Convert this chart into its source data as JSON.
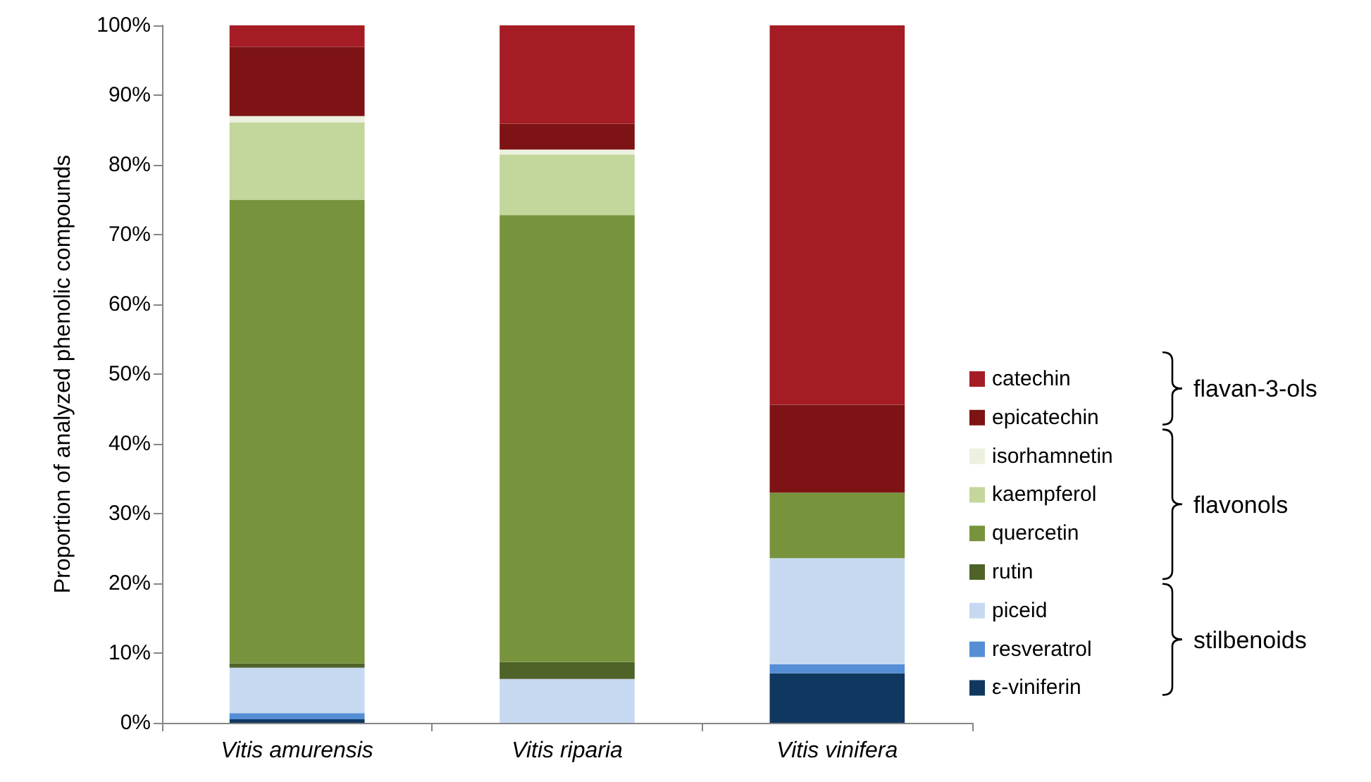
{
  "chart_data": {
    "type": "bar",
    "stacked": true,
    "ylabel": "Proportion of analyzed phenolic compounds",
    "categories": [
      "Vitis amurensis",
      "Vitis riparia",
      "Vitis vinifera"
    ],
    "series": [
      {
        "name": "ε-viniferin",
        "color": "#10375f",
        "values": [
          0.5,
          0,
          7.1
        ]
      },
      {
        "name": "resveratrol",
        "color": "#558ed5",
        "values": [
          0.9,
          0,
          1.3
        ]
      },
      {
        "name": "piceid",
        "color": "#c6d9f1",
        "values": [
          6.5,
          6.3,
          15.2
        ]
      },
      {
        "name": "rutin",
        "color": "#4f6228",
        "values": [
          0.6,
          2.4,
          0
        ]
      },
      {
        "name": "quercetin",
        "color": "#77933c",
        "values": [
          66.5,
          64.1,
          9.4
        ]
      },
      {
        "name": "kaempferol",
        "color": "#c3d69b",
        "values": [
          11.1,
          8.7,
          0
        ]
      },
      {
        "name": "isorhamnetin",
        "color": "#ebf1de",
        "values": [
          0.9,
          0.7,
          0
        ]
      },
      {
        "name": "epicatechin",
        "color": "#7d1315",
        "values": [
          9.9,
          3.7,
          12.6
        ]
      },
      {
        "name": "catechin",
        "color": "#a51c24",
        "values": [
          3.1,
          14.1,
          54.4
        ]
      }
    ],
    "ylim": [
      0,
      100
    ],
    "yticks": [
      {
        "value": 0,
        "label": "0%"
      },
      {
        "value": 10,
        "label": "10%"
      },
      {
        "value": 20,
        "label": "20%"
      },
      {
        "value": 30,
        "label": "30%"
      },
      {
        "value": 40,
        "label": "40%"
      },
      {
        "value": 50,
        "label": "50%"
      },
      {
        "value": 60,
        "label": "60%"
      },
      {
        "value": 70,
        "label": "70%"
      },
      {
        "value": 80,
        "label": "80%"
      },
      {
        "value": 90,
        "label": "90%"
      },
      {
        "value": 100,
        "label": "100%"
      }
    ],
    "grid": false,
    "legend": "right",
    "annotations": [
      "flavan-3-ols",
      "flavonols",
      "stilbenoids"
    ]
  }
}
